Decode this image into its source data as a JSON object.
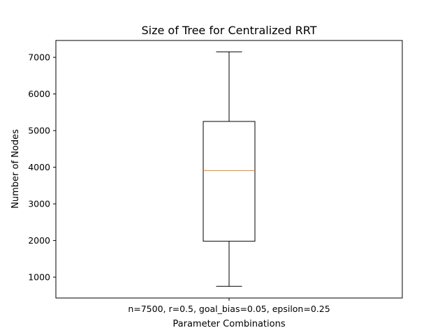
{
  "chart_data": {
    "type": "box",
    "title": "Size of Tree for Centralized RRT",
    "xlabel": "Parameter Combinations",
    "ylabel": "Number of Nodes",
    "categories": [
      "n=7500, r=0.5, goal_bias=0.05, epsilon=0.25"
    ],
    "ylim": [
      430,
      7460
    ],
    "yticks": [
      1000,
      2000,
      3000,
      4000,
      5000,
      6000,
      7000
    ],
    "boxes": [
      {
        "category": "n=7500, r=0.5, goal_bias=0.05, epsilon=0.25",
        "whisker_low": 750,
        "q1": 1980,
        "median": 3910,
        "q3": 5250,
        "whisker_high": 7150
      }
    ],
    "grid": false,
    "colors": {
      "box": "#000000",
      "median": "#ff7f0e",
      "background": "#ffffff"
    }
  }
}
